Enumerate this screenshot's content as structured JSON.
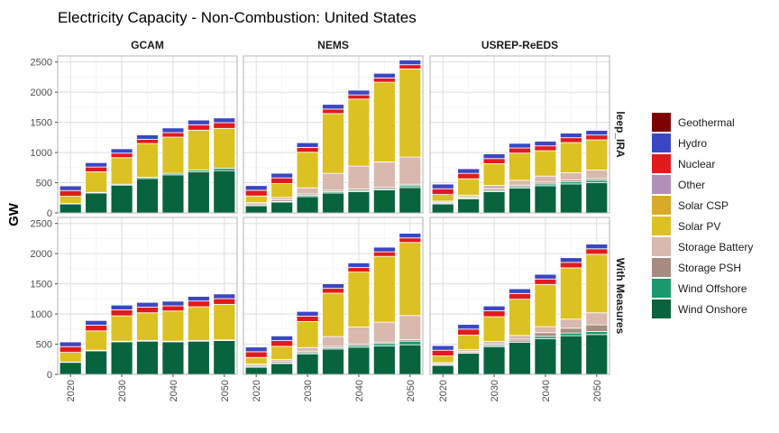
{
  "chart_data": {
    "type": "bar",
    "title": "Electricity Capacity - Non-Combustion: United States",
    "ylabel": "GW",
    "xlabel": "",
    "ylim": [
      0,
      2600
    ],
    "y_ticks": [
      0,
      500,
      1000,
      1500,
      2000,
      2500
    ],
    "x_ticks": [
      2020,
      2030,
      2040,
      2050
    ],
    "years": [
      2020,
      2025,
      2030,
      2035,
      2040,
      2045,
      2050
    ],
    "columns": [
      "GCAM",
      "NEMS",
      "USREP-ReEDS"
    ],
    "rows": [
      "leep_IRA",
      "With Measures"
    ],
    "legend_position": "right",
    "grid": true,
    "series": [
      {
        "name": "Geothermal",
        "color": "#7F0000"
      },
      {
        "name": "Hydro",
        "color": "#3A47C4"
      },
      {
        "name": "Nuclear",
        "color": "#E31A1C"
      },
      {
        "name": "Other",
        "color": "#B08FB8"
      },
      {
        "name": "Solar CSP",
        "color": "#D9A92A"
      },
      {
        "name": "Solar PV",
        "color": "#DCC122"
      },
      {
        "name": "Storage Battery",
        "color": "#D9B8AE"
      },
      {
        "name": "Storage PSH",
        "color": "#A88B80"
      },
      {
        "name": "Wind Offshore",
        "color": "#1A9A6C"
      },
      {
        "name": "Wind Onshore",
        "color": "#07643E"
      }
    ],
    "stack_order": [
      "Wind Onshore",
      "Wind Offshore",
      "Storage PSH",
      "Storage Battery",
      "Solar PV",
      "Solar CSP",
      "Other",
      "Nuclear",
      "Hydro",
      "Geothermal"
    ],
    "panels": [
      {
        "column": "GCAM",
        "row": "leep_IRA",
        "values": {
          "Wind Onshore": [
            150,
            330,
            460,
            570,
            630,
            680,
            700
          ],
          "Wind Offshore": [
            5,
            10,
            15,
            20,
            25,
            30,
            40
          ],
          "Storage PSH": [
            0,
            0,
            0,
            0,
            0,
            0,
            0
          ],
          "Storage Battery": [
            0,
            0,
            0,
            0,
            0,
            0,
            0
          ],
          "Solar PV": [
            120,
            340,
            440,
            560,
            600,
            660,
            660
          ],
          "Solar CSP": [
            0,
            0,
            0,
            0,
            0,
            0,
            0
          ],
          "Other": [
            0,
            0,
            0,
            0,
            0,
            0,
            0
          ],
          "Nuclear": [
            95,
            80,
            75,
            70,
            75,
            90,
            95
          ],
          "Hydro": [
            80,
            75,
            75,
            75,
            80,
            80,
            80
          ],
          "Geothermal": [
            5,
            5,
            5,
            5,
            5,
            5,
            5
          ]
        }
      },
      {
        "column": "NEMS",
        "row": "leep_IRA",
        "values": {
          "Wind Onshore": [
            120,
            180,
            270,
            330,
            350,
            380,
            420
          ],
          "Wind Offshore": [
            5,
            10,
            20,
            20,
            20,
            20,
            30
          ],
          "Storage PSH": [
            25,
            25,
            25,
            25,
            25,
            25,
            25
          ],
          "Storage Battery": [
            20,
            40,
            100,
            280,
            380,
            420,
            450
          ],
          "Solar PV": [
            110,
            230,
            590,
            990,
            1110,
            1320,
            1460
          ],
          "Solar CSP": [
            0,
            0,
            0,
            0,
            0,
            0,
            0
          ],
          "Other": [
            0,
            0,
            0,
            0,
            0,
            0,
            0
          ],
          "Nuclear": [
            95,
            95,
            80,
            75,
            70,
            70,
            70
          ],
          "Hydro": [
            80,
            80,
            80,
            80,
            80,
            80,
            80
          ],
          "Geothermal": [
            5,
            5,
            5,
            5,
            5,
            5,
            5
          ]
        }
      },
      {
        "column": "USREP-ReEDS",
        "row": "leep_IRA",
        "values": {
          "Wind Onshore": [
            150,
            230,
            350,
            410,
            450,
            480,
            500
          ],
          "Wind Offshore": [
            5,
            15,
            20,
            25,
            30,
            35,
            40
          ],
          "Storage PSH": [
            20,
            20,
            25,
            25,
            30,
            30,
            30
          ],
          "Storage Battery": [
            20,
            30,
            60,
            80,
            100,
            120,
            140
          ],
          "Solar PV": [
            110,
            270,
            360,
            450,
            420,
            500,
            500
          ],
          "Solar CSP": [
            0,
            0,
            0,
            0,
            0,
            0,
            0
          ],
          "Other": [
            0,
            0,
            0,
            0,
            0,
            0,
            0
          ],
          "Nuclear": [
            95,
            90,
            85,
            85,
            80,
            80,
            80
          ],
          "Hydro": [
            80,
            80,
            80,
            80,
            80,
            80,
            80
          ],
          "Geothermal": [
            5,
            5,
            5,
            5,
            5,
            5,
            5
          ]
        }
      },
      {
        "column": "GCAM",
        "row": "With Measures",
        "values": {
          "Wind Onshore": [
            200,
            390,
            540,
            550,
            540,
            550,
            560
          ],
          "Wind Offshore": [
            5,
            10,
            10,
            10,
            10,
            10,
            10
          ],
          "Storage PSH": [
            0,
            0,
            0,
            0,
            0,
            0,
            0
          ],
          "Storage Battery": [
            0,
            0,
            0,
            0,
            0,
            0,
            0
          ],
          "Solar PV": [
            160,
            320,
            420,
            460,
            500,
            560,
            590
          ],
          "Solar CSP": [
            0,
            0,
            0,
            0,
            0,
            0,
            0
          ],
          "Other": [
            0,
            0,
            0,
            0,
            0,
            0,
            0
          ],
          "Nuclear": [
            95,
            95,
            100,
            95,
            85,
            95,
            95
          ],
          "Hydro": [
            80,
            80,
            80,
            80,
            80,
            80,
            80
          ],
          "Geothermal": [
            5,
            5,
            5,
            5,
            5,
            5,
            5
          ]
        }
      },
      {
        "column": "NEMS",
        "row": "With Measures",
        "values": {
          "Wind Onshore": [
            120,
            180,
            340,
            420,
            450,
            470,
            490
          ],
          "Wind Offshore": [
            5,
            10,
            20,
            20,
            30,
            40,
            60
          ],
          "Storage PSH": [
            25,
            25,
            25,
            25,
            25,
            25,
            25
          ],
          "Storage Battery": [
            20,
            30,
            60,
            160,
            280,
            330,
            400
          ],
          "Solar PV": [
            110,
            220,
            430,
            720,
            910,
            1090,
            1210
          ],
          "Solar CSP": [
            0,
            0,
            0,
            0,
            0,
            0,
            0
          ],
          "Other": [
            0,
            0,
            0,
            0,
            0,
            0,
            0
          ],
          "Nuclear": [
            95,
            95,
            90,
            80,
            75,
            75,
            75
          ],
          "Hydro": [
            80,
            80,
            80,
            80,
            80,
            80,
            80
          ],
          "Geothermal": [
            5,
            5,
            5,
            5,
            5,
            5,
            5
          ]
        }
      },
      {
        "column": "USREP-ReEDS",
        "row": "With Measures",
        "values": {
          "Wind Onshore": [
            150,
            350,
            460,
            530,
            590,
            640,
            660
          ],
          "Wind Offshore": [
            5,
            10,
            20,
            25,
            40,
            45,
            50
          ],
          "Storage PSH": [
            20,
            20,
            25,
            30,
            60,
            80,
            110
          ],
          "Storage Battery": [
            20,
            30,
            40,
            60,
            100,
            150,
            200
          ],
          "Solar PV": [
            110,
            240,
            410,
            600,
            700,
            850,
            970
          ],
          "Solar CSP": [
            0,
            0,
            0,
            0,
            0,
            0,
            0
          ],
          "Other": [
            0,
            0,
            0,
            0,
            0,
            0,
            0
          ],
          "Nuclear": [
            95,
            100,
            100,
            95,
            90,
            90,
            90
          ],
          "Hydro": [
            80,
            80,
            80,
            80,
            80,
            80,
            80
          ],
          "Geothermal": [
            5,
            5,
            5,
            5,
            5,
            5,
            5
          ]
        }
      }
    ]
  }
}
